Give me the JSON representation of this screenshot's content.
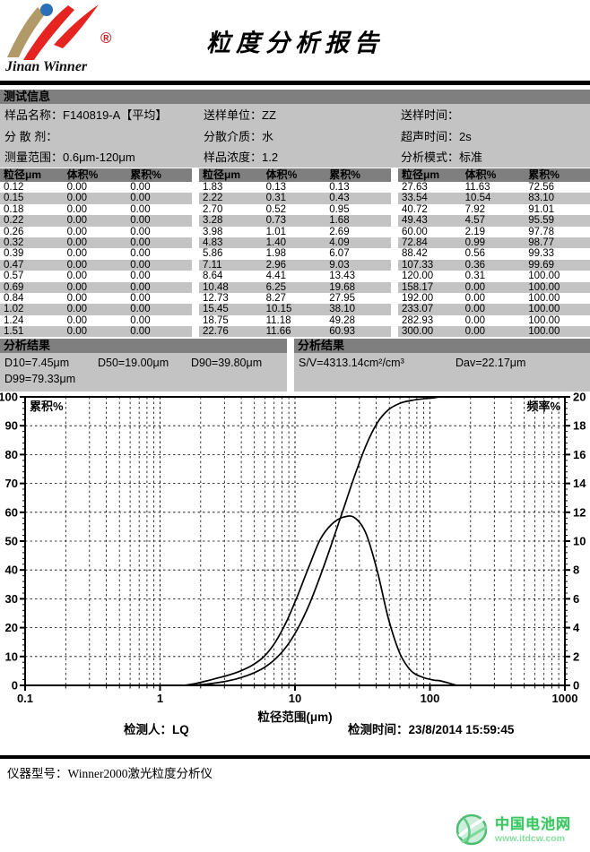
{
  "header": {
    "logo_text": "Jinan Winner",
    "registered_mark": "®",
    "title": "粒度分析报告"
  },
  "test_info": {
    "section_title": "测试信息",
    "rows": [
      [
        {
          "label": "样品名称",
          "value": "F140819-A【平均】"
        },
        {
          "label": "送样单位",
          "value": "ZZ"
        },
        {
          "label": "送样时间",
          "value": ""
        }
      ],
      [
        {
          "label": "分 散 剂",
          "value": ""
        },
        {
          "label": "分散介质",
          "value": "水"
        },
        {
          "label": "超声时间",
          "value": "2s"
        }
      ],
      [
        {
          "label": "测量范围",
          "value": "0.6μm-120μm"
        },
        {
          "label": "样品浓度",
          "value": "1.2"
        },
        {
          "label": "分析模式",
          "value": "标准"
        }
      ]
    ]
  },
  "table": {
    "headers": [
      "粒径μm",
      "体积%",
      "累积%"
    ],
    "groups": [
      [
        [
          "0.12",
          "0.00",
          "0.00"
        ],
        [
          "0.15",
          "0.00",
          "0.00"
        ],
        [
          "0.18",
          "0.00",
          "0.00"
        ],
        [
          "0.22",
          "0.00",
          "0.00"
        ],
        [
          "0.26",
          "0.00",
          "0.00"
        ],
        [
          "0.32",
          "0.00",
          "0.00"
        ],
        [
          "0.39",
          "0.00",
          "0.00"
        ],
        [
          "0.47",
          "0.00",
          "0.00"
        ],
        [
          "0.57",
          "0.00",
          "0.00"
        ],
        [
          "0.69",
          "0.00",
          "0.00"
        ],
        [
          "0.84",
          "0.00",
          "0.00"
        ],
        [
          "1.02",
          "0.00",
          "0.00"
        ],
        [
          "1.24",
          "0.00",
          "0.00"
        ],
        [
          "1.51",
          "0.00",
          "0.00"
        ]
      ],
      [
        [
          "1.83",
          "0.13",
          "0.13"
        ],
        [
          "2.22",
          "0.31",
          "0.43"
        ],
        [
          "2.70",
          "0.52",
          "0.95"
        ],
        [
          "3.28",
          "0.73",
          "1.68"
        ],
        [
          "3.98",
          "1.01",
          "2.69"
        ],
        [
          "4.83",
          "1.40",
          "4.09"
        ],
        [
          "5.86",
          "1.98",
          "6.07"
        ],
        [
          "7.11",
          "2.96",
          "9.03"
        ],
        [
          "8.64",
          "4.41",
          "13.43"
        ],
        [
          "10.48",
          "6.25",
          "19.68"
        ],
        [
          "12.73",
          "8.27",
          "27.95"
        ],
        [
          "15.45",
          "10.15",
          "38.10"
        ],
        [
          "18.75",
          "11.18",
          "49.28"
        ],
        [
          "22.76",
          "11.66",
          "60.93"
        ]
      ],
      [
        [
          "27.63",
          "11.63",
          "72.56"
        ],
        [
          "33.54",
          "10.54",
          "83.10"
        ],
        [
          "40.72",
          "7.92",
          "91.01"
        ],
        [
          "49.43",
          "4.57",
          "95.59"
        ],
        [
          "60.00",
          "2.19",
          "97.78"
        ],
        [
          "72.84",
          "0.99",
          "98.77"
        ],
        [
          "88.42",
          "0.56",
          "99.33"
        ],
        [
          "107.33",
          "0.36",
          "99.69"
        ],
        [
          "120.00",
          "0.31",
          "100.00"
        ],
        [
          "158.17",
          "0.00",
          "100.00"
        ],
        [
          "192.00",
          "0.00",
          "100.00"
        ],
        [
          "233.07",
          "0.00",
          "100.00"
        ],
        [
          "282.93",
          "0.00",
          "100.00"
        ],
        [
          "300.00",
          "0.00",
          "100.00"
        ]
      ]
    ]
  },
  "results_left": {
    "section_title": "分析结果",
    "line1": [
      "D10=7.45μm",
      "D50=19.00μm",
      "D90=39.80μm"
    ],
    "line2": [
      "D99=79.33μm"
    ]
  },
  "results_right": {
    "section_title": "分析结果",
    "line1": [
      "S/V=4313.14cm²/cm³",
      "Dav=22.17μm"
    ]
  },
  "chart_data": {
    "type": "line",
    "xlabel": "粒径范围(μm)",
    "ylabel_left": "累积%",
    "ylabel_right": "频率%",
    "x_scale": "log",
    "xlim": [
      0.1,
      1000
    ],
    "ylim_left": [
      0,
      100
    ],
    "ylim_right": [
      0,
      20
    ],
    "x_ticks": [
      0.1,
      1,
      10,
      100,
      1000
    ],
    "y_ticks_left": [
      0,
      10,
      20,
      30,
      40,
      50,
      60,
      70,
      80,
      90,
      100
    ],
    "y_ticks_right": [
      0,
      2,
      4,
      6,
      8,
      10,
      12,
      14,
      16,
      18,
      20
    ],
    "grid": true,
    "series": [
      {
        "name": "累积%",
        "axis": "left",
        "x": [
          1.51,
          1.83,
          2.22,
          2.7,
          3.28,
          3.98,
          4.83,
          5.86,
          7.11,
          8.64,
          10.48,
          12.73,
          15.45,
          18.75,
          22.76,
          27.63,
          33.54,
          40.72,
          49.43,
          60.0,
          72.84,
          88.42,
          107.33,
          120.0,
          158.17,
          192.0,
          233.07,
          282.93,
          300.0
        ],
        "y": [
          0,
          0.13,
          0.43,
          0.95,
          1.68,
          2.69,
          4.09,
          6.07,
          9.03,
          13.43,
          19.68,
          27.95,
          38.1,
          49.28,
          60.93,
          72.56,
          83.1,
          91.01,
          95.59,
          97.78,
          98.77,
          99.33,
          99.69,
          100,
          100,
          100,
          100,
          100,
          100
        ]
      },
      {
        "name": "频率%",
        "axis": "right",
        "x": [
          1.51,
          1.83,
          2.22,
          2.7,
          3.28,
          3.98,
          4.83,
          5.86,
          7.11,
          8.64,
          10.48,
          12.73,
          15.45,
          18.75,
          22.76,
          27.63,
          33.54,
          40.72,
          49.43,
          60.0,
          72.84,
          88.42,
          107.33,
          120.0,
          158.17
        ],
        "y": [
          0,
          0.13,
          0.31,
          0.52,
          0.73,
          1.01,
          1.4,
          1.98,
          2.96,
          4.41,
          6.25,
          8.27,
          10.15,
          11.18,
          11.66,
          11.63,
          10.54,
          7.92,
          4.57,
          2.19,
          0.99,
          0.56,
          0.36,
          0.31,
          0
        ]
      }
    ]
  },
  "signature": {
    "inspector": "检测人：LQ",
    "time": "检测时间：23/8/2014 15:59:45"
  },
  "footer": {
    "instrument": "仪器型号：Winner2000激光粒度分析仪"
  },
  "watermark": {
    "name": "中国电池网",
    "url": "www.itdcw.com"
  }
}
